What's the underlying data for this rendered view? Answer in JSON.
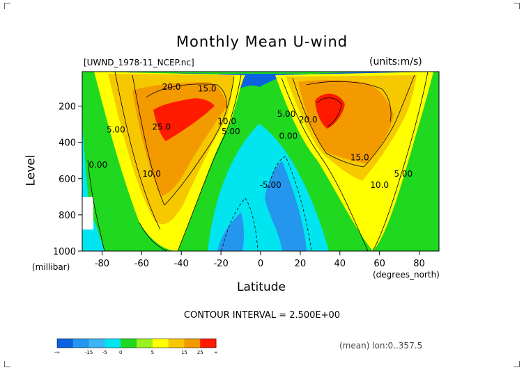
{
  "chart_data": {
    "type": "contour",
    "title": "Monthly Mean U-wind",
    "subtitle_left": "[UWND_1978-11_NCEP.nc]",
    "subtitle_right": "(units:m/s)",
    "xlabel": "Latitude",
    "xunit": "(degrees_north)",
    "ylabel": "Level",
    "yunit": "(millibar)",
    "xlim": [
      -90,
      90
    ],
    "ylim": [
      1000,
      10
    ],
    "x_ticks": [
      "-80",
      "-60",
      "-40",
      "-20",
      "0",
      "20",
      "40",
      "60",
      "80"
    ],
    "y_ticks": [
      "200",
      "400",
      "600",
      "800",
      "1000"
    ],
    "contour_interval": 2.5,
    "contour_labels": [
      {
        "text": "20.0",
        "lat": -45,
        "lev": 110
      },
      {
        "text": "15.0",
        "lat": -27,
        "lev": 120
      },
      {
        "text": "25.0",
        "lat": -50,
        "lev": 330
      },
      {
        "text": "10.0",
        "lat": -17,
        "lev": 300
      },
      {
        "text": "5.00",
        "lat": -15,
        "lev": 355
      },
      {
        "text": "5.00",
        "lat": -73,
        "lev": 345
      },
      {
        "text": "0.00",
        "lat": -82,
        "lev": 540
      },
      {
        "text": "10.0",
        "lat": -55,
        "lev": 590
      },
      {
        "text": "5.00",
        "lat": 13,
        "lev": 260
      },
      {
        "text": "0.00",
        "lat": 14,
        "lev": 380
      },
      {
        "text": "20.0",
        "lat": 24,
        "lev": 290
      },
      {
        "text": "15.0",
        "lat": 50,
        "lev": 500
      },
      {
        "text": "10.0",
        "lat": 60,
        "lev": 650
      },
      {
        "text": "5.00",
        "lat": 72,
        "lev": 590
      },
      {
        "text": "-5.00",
        "lat": 5,
        "lev": 650
      }
    ],
    "colorbar": {
      "colors": [
        "#0a62e0",
        "#2596ee",
        "#3ab4f2",
        "#00e5f0",
        "#20d820",
        "#9bf020",
        "#ffff00",
        "#f6c800",
        "#f39a00",
        "#ff1a00"
      ],
      "labels": [
        "-∞",
        "-15",
        "-5",
        "0",
        "5",
        "15",
        "25",
        "∞"
      ]
    },
    "grid": false
  },
  "footer": {
    "contour_note": "CONTOUR INTERVAL = 2.500E+00",
    "mean_note": "(mean) lon:0..357.5"
  }
}
